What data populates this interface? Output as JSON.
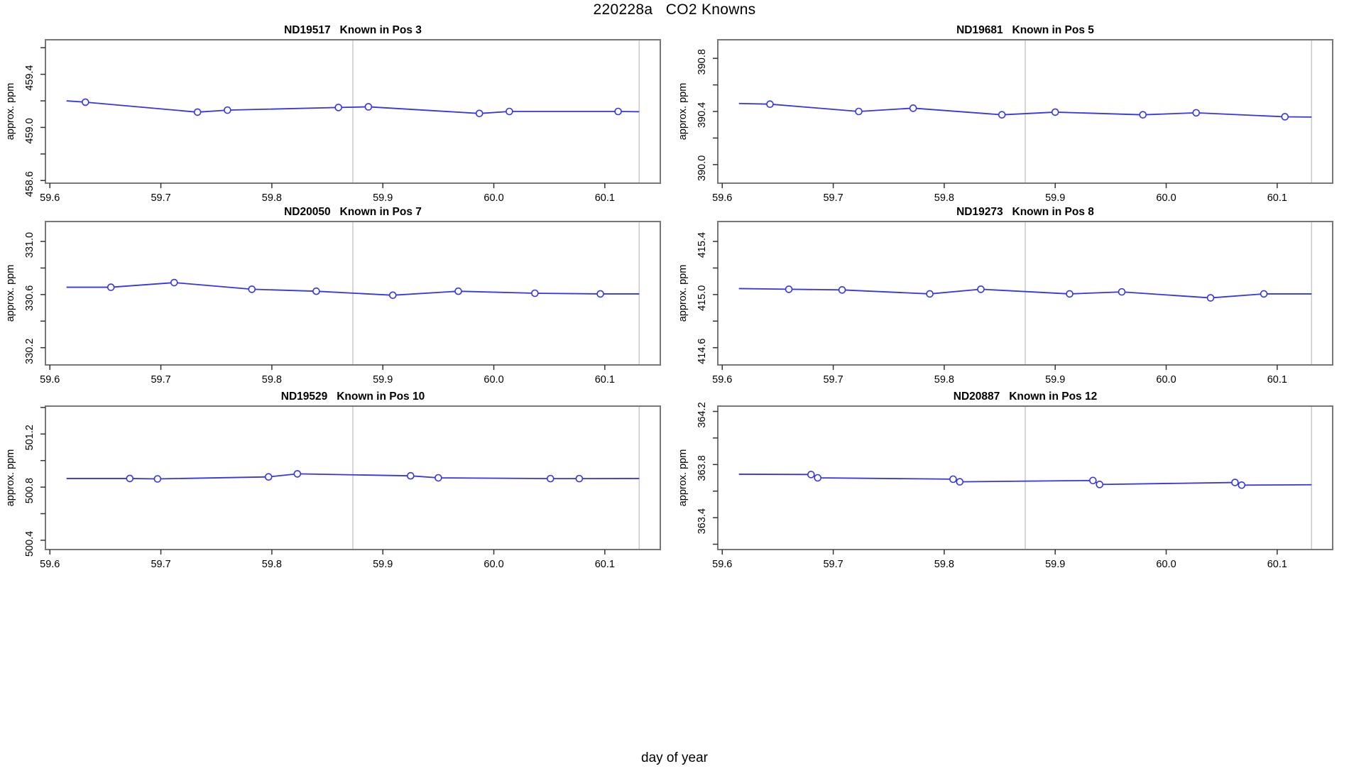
{
  "header": {
    "title": "220228a   CO2 Knowns"
  },
  "footer": {
    "xlabel": "day of year"
  },
  "colors": {
    "line_blue": "#3535e8",
    "vline_gray": "#c9c9c9",
    "box_gray": "#777777",
    "tick_color": "#333333",
    "text_color": "#000000",
    "background": "#ffffff"
  },
  "axis_shared": {
    "xlim": [
      59.596,
      60.15
    ],
    "xticks": [
      59.6,
      59.7,
      59.8,
      59.9,
      60.0,
      60.1
    ],
    "xtick_labels": [
      "59.6",
      "59.7",
      "59.8",
      "59.9",
      "60.0",
      "60.1"
    ],
    "vlines": [
      59.873,
      60.131
    ],
    "ylabel": "approx. ppm"
  },
  "chart_data": [
    {
      "type": "line",
      "title": "ND19517   Known in Pos 3",
      "ylabel": "approx. ppm",
      "ylim": [
        458.58,
        459.66
      ],
      "yticks": [
        458.6,
        458.8,
        459.0,
        459.2,
        459.4,
        459.6
      ],
      "ytick_labels": [
        "458.6",
        "",
        "459.0",
        "",
        "459.4",
        ""
      ],
      "x": [
        59.632,
        59.733,
        59.76,
        59.86,
        59.887,
        59.987,
        60.014,
        60.112
      ],
      "y": [
        459.19,
        459.115,
        459.13,
        459.15,
        459.155,
        459.105,
        459.12,
        459.12
      ],
      "line_pre": [
        59.615,
        459.2
      ],
      "line_post": [
        60.131,
        459.118
      ]
    },
    {
      "type": "line",
      "title": "ND19681   Known in Pos 5",
      "ylabel": "approx. ppm",
      "ylim": [
        389.86,
        390.94
      ],
      "yticks": [
        390.0,
        390.2,
        390.4,
        390.6,
        390.8
      ],
      "ytick_labels": [
        "390.0",
        "",
        "390.4",
        "",
        "390.8"
      ],
      "x": [
        59.643,
        59.723,
        59.772,
        59.852,
        59.9,
        59.979,
        60.027,
        60.107
      ],
      "y": [
        390.455,
        390.4,
        390.425,
        390.375,
        390.395,
        390.375,
        390.39,
        390.36
      ],
      "line_pre": [
        59.615,
        390.46
      ],
      "line_post": [
        60.131,
        390.358
      ]
    },
    {
      "type": "line",
      "title": "ND20050   Known in Pos 7",
      "ylabel": "approx. ppm",
      "ylim": [
        330.07,
        331.15
      ],
      "yticks": [
        330.2,
        330.4,
        330.6,
        330.8,
        331.0
      ],
      "ytick_labels": [
        "330.2",
        "",
        "330.6",
        "",
        "331.0"
      ],
      "x": [
        59.655,
        59.712,
        59.782,
        59.84,
        59.909,
        59.968,
        60.037,
        60.096
      ],
      "y": [
        330.655,
        330.69,
        330.64,
        330.625,
        330.595,
        330.625,
        330.61,
        330.605
      ],
      "line_pre": [
        59.615,
        330.655
      ],
      "line_post": [
        60.131,
        330.605
      ]
    },
    {
      "type": "line",
      "title": "ND19273   Known in Pos 8",
      "ylabel": "approx. ppm",
      "ylim": [
        414.47,
        415.55
      ],
      "yticks": [
        414.6,
        414.8,
        415.0,
        415.2,
        415.4
      ],
      "ytick_labels": [
        "414.6",
        "",
        "415.0",
        "",
        "415.4"
      ],
      "x": [
        59.66,
        59.708,
        59.787,
        59.833,
        59.913,
        59.96,
        60.04,
        60.088
      ],
      "y": [
        415.04,
        415.035,
        415.005,
        415.04,
        415.005,
        415.02,
        414.975,
        415.005
      ],
      "line_pre": [
        59.615,
        415.045
      ],
      "line_post": [
        60.131,
        415.005
      ]
    },
    {
      "type": "line",
      "title": "ND19529   Known in Pos 10",
      "ylabel": "approx. ppm",
      "ylim": [
        500.33,
        501.41
      ],
      "yticks": [
        500.4,
        500.6,
        500.8,
        501.0,
        501.2,
        501.4
      ],
      "ytick_labels": [
        "500.4",
        "",
        "500.8",
        "",
        "501.2",
        ""
      ],
      "x": [
        59.672,
        59.697,
        59.797,
        59.823,
        59.925,
        59.95,
        60.051,
        60.077
      ],
      "y": [
        500.865,
        500.862,
        500.877,
        500.9,
        500.885,
        500.87,
        500.864,
        500.864
      ],
      "line_pre": [
        59.615,
        500.865
      ],
      "line_post": [
        60.131,
        500.865
      ]
    },
    {
      "type": "line",
      "title": "ND20887   Known in Pos 12",
      "ylabel": "approx. ppm",
      "ylim": [
        363.16,
        364.24
      ],
      "yticks": [
        363.2,
        363.4,
        363.6,
        363.8,
        364.0,
        364.2
      ],
      "ytick_labels": [
        "",
        "363.4",
        "",
        "363.8",
        "",
        "364.2"
      ],
      "x": [
        59.68,
        59.686,
        59.808,
        59.814,
        59.934,
        59.94,
        60.062,
        60.068
      ],
      "y": [
        363.725,
        363.7,
        363.69,
        363.67,
        363.68,
        363.65,
        363.665,
        363.645
      ],
      "line_pre": [
        59.615,
        363.727
      ],
      "line_post": [
        60.131,
        363.648
      ]
    }
  ]
}
